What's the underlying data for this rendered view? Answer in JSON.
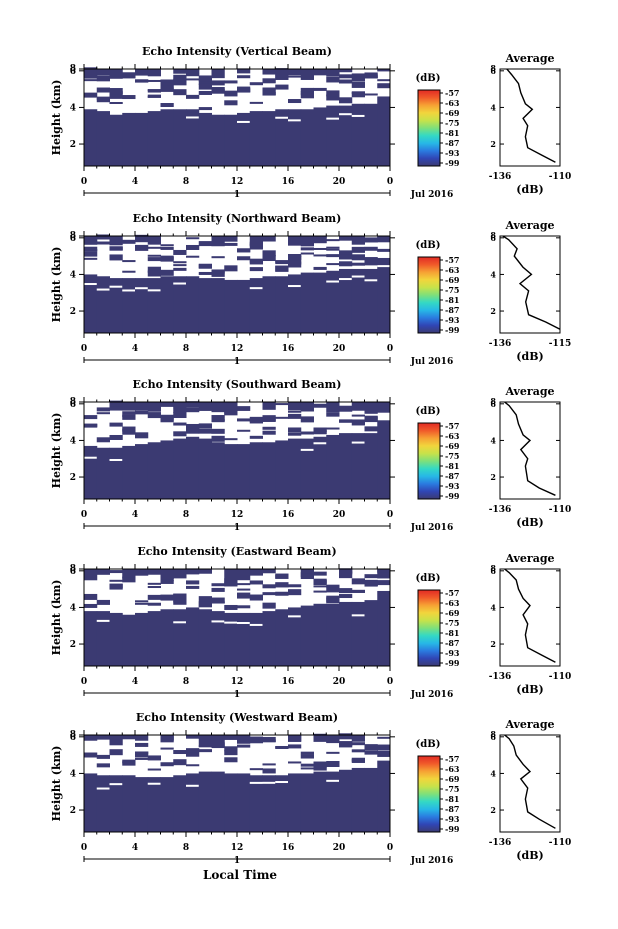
{
  "figure": {
    "xaxis_bottom_label": "Local Time",
    "colorbar_unit": "(dB)",
    "avg_xlabel": "(dB)",
    "fill_color": "#3b3a72",
    "colorbar_colors": [
      "#3b3a72",
      "#3046b5",
      "#2a7be0",
      "#27b8e6",
      "#34d9c4",
      "#7fe07a",
      "#c8e24a",
      "#f2d53c",
      "#f6a134",
      "#f05a2a",
      "#e22b24"
    ]
  },
  "chart_data": [
    {
      "type": "heatmap",
      "title": "Echo Intensity (Vertical Beam)",
      "ylabel": "Height (km)",
      "xlim": [
        0,
        24
      ],
      "ylim": [
        0.8,
        6.1
      ],
      "xticks": [
        "0",
        "4",
        "8",
        "12",
        "16",
        "20",
        "0"
      ],
      "yticks": [
        "2",
        "4",
        "6",
        "8"
      ],
      "xsub_label": "1",
      "date_label": "Jul 2016",
      "colorbar_ticks": [
        "-57",
        "-63",
        "-69",
        "-75",
        "-81",
        "-87",
        "-93",
        "-99"
      ],
      "echo_top_km": [
        3.9,
        3.8,
        3.6,
        3.7,
        3.7,
        3.8,
        3.9,
        3.9,
        3.9,
        3.7,
        3.6,
        3.6,
        3.7,
        3.8,
        3.8,
        3.9,
        3.9,
        3.9,
        4.0,
        4.1,
        4.1,
        4.2,
        4.2,
        4.6
      ],
      "avg": {
        "title": "Average",
        "xlim": [
          -136,
          -110
        ],
        "ylim": [
          0.8,
          6.1
        ],
        "xticks": [
          "-136",
          "-110"
        ],
        "yticks": [
          "2",
          "4",
          "6",
          "8"
        ],
        "profile": [
          [
            -112,
            1.0
          ],
          [
            -118,
            1.4
          ],
          [
            -124,
            1.8
          ],
          [
            -125,
            2.4
          ],
          [
            -124,
            3.0
          ],
          [
            -126,
            3.4
          ],
          [
            -122,
            3.9
          ],
          [
            -125,
            4.2
          ],
          [
            -127,
            4.8
          ],
          [
            -128,
            5.3
          ],
          [
            -131,
            5.8
          ],
          [
            -133,
            6.1
          ]
        ]
      }
    },
    {
      "type": "heatmap",
      "title": "Echo Intensity (Northward Beam)",
      "ylabel": "Height (km)",
      "xlim": [
        0,
        24
      ],
      "ylim": [
        0.8,
        6.1
      ],
      "xticks": [
        "0",
        "4",
        "8",
        "12",
        "16",
        "20",
        "0"
      ],
      "yticks": [
        "2",
        "4",
        "6",
        "8"
      ],
      "xsub_label": "1",
      "date_label": "Jul 2016",
      "colorbar_ticks": [
        "-57",
        "-63",
        "-69",
        "-75",
        "-81",
        "-87",
        "-93",
        "-99"
      ],
      "echo_top_km": [
        4.0,
        3.9,
        3.8,
        3.8,
        3.8,
        3.8,
        3.9,
        3.9,
        3.9,
        3.8,
        3.8,
        3.7,
        3.7,
        3.8,
        3.9,
        3.9,
        4.0,
        4.1,
        4.1,
        4.2,
        4.3,
        4.3,
        4.3,
        4.9
      ],
      "avg": {
        "title": "Average",
        "xlim": [
          -136,
          -115
        ],
        "ylim": [
          0.8,
          6.1
        ],
        "xticks": [
          "-136",
          "-115"
        ],
        "yticks": [
          "2",
          "4",
          "6",
          "8"
        ],
        "profile": [
          [
            -115,
            1.0
          ],
          [
            -120,
            1.4
          ],
          [
            -126,
            1.8
          ],
          [
            -127,
            2.5
          ],
          [
            -126,
            3.1
          ],
          [
            -129,
            3.5
          ],
          [
            -125,
            4.0
          ],
          [
            -128,
            4.4
          ],
          [
            -131,
            5.0
          ],
          [
            -130,
            5.4
          ],
          [
            -133,
            5.9
          ],
          [
            -135,
            6.1
          ]
        ]
      }
    },
    {
      "type": "heatmap",
      "title": "Echo Intensity (Southward Beam)",
      "ylabel": "Height (km)",
      "xlim": [
        0,
        24
      ],
      "ylim": [
        0.8,
        6.1
      ],
      "xticks": [
        "0",
        "4",
        "8",
        "12",
        "16",
        "20",
        "0"
      ],
      "yticks": [
        "2",
        "4",
        "6",
        "8"
      ],
      "xsub_label": "1",
      "date_label": "Jul 2016",
      "colorbar_ticks": [
        "-57",
        "-63",
        "-69",
        "-75",
        "-81",
        "-87",
        "-93",
        "-99"
      ],
      "echo_top_km": [
        3.7,
        3.6,
        3.6,
        3.7,
        3.8,
        3.9,
        4.0,
        4.1,
        4.2,
        4.1,
        3.9,
        3.8,
        3.8,
        3.9,
        3.9,
        4.0,
        4.1,
        4.1,
        4.2,
        4.3,
        4.4,
        4.4,
        4.4,
        5.1
      ],
      "avg": {
        "title": "Average",
        "xlim": [
          -136,
          -110
        ],
        "ylim": [
          0.8,
          6.1
        ],
        "xticks": [
          "-136",
          "-110"
        ],
        "yticks": [
          "2",
          "4",
          "6",
          "8"
        ],
        "profile": [
          [
            -112,
            1.0
          ],
          [
            -119,
            1.4
          ],
          [
            -124,
            1.8
          ],
          [
            -125,
            2.6
          ],
          [
            -124,
            3.0
          ],
          [
            -127,
            3.5
          ],
          [
            -123,
            4.0
          ],
          [
            -126,
            4.3
          ],
          [
            -128,
            4.9
          ],
          [
            -129,
            5.4
          ],
          [
            -132,
            5.9
          ],
          [
            -134,
            6.1
          ]
        ]
      }
    },
    {
      "type": "heatmap",
      "title": "Echo Intensity (Eastward Beam)",
      "ylabel": "Height (km)",
      "xlim": [
        0,
        24
      ],
      "ylim": [
        0.8,
        6.1
      ],
      "xticks": [
        "0",
        "4",
        "8",
        "12",
        "16",
        "20",
        "0"
      ],
      "yticks": [
        "2",
        "4",
        "6",
        "8"
      ],
      "xsub_label": "1",
      "date_label": "Jul 2016",
      "colorbar_ticks": [
        "-57",
        "-63",
        "-69",
        "-75",
        "-81",
        "-87",
        "-93",
        "-99"
      ],
      "echo_top_km": [
        3.8,
        3.8,
        3.7,
        3.6,
        3.7,
        3.8,
        3.9,
        3.9,
        4.0,
        3.9,
        3.8,
        3.7,
        3.7,
        3.7,
        3.8,
        3.9,
        4.0,
        4.1,
        4.2,
        4.2,
        4.3,
        4.3,
        4.4,
        4.9
      ],
      "avg": {
        "title": "Average",
        "xlim": [
          -136,
          -110
        ],
        "ylim": [
          0.8,
          6.1
        ],
        "xticks": [
          "-136",
          "-110"
        ],
        "yticks": [
          "2",
          "4",
          "6",
          "8"
        ],
        "profile": [
          [
            -112,
            1.0
          ],
          [
            -118,
            1.4
          ],
          [
            -124,
            1.8
          ],
          [
            -125,
            2.5
          ],
          [
            -124,
            3.1
          ],
          [
            -126,
            3.6
          ],
          [
            -123,
            4.1
          ],
          [
            -126,
            4.5
          ],
          [
            -128,
            5.0
          ],
          [
            -129,
            5.5
          ],
          [
            -132,
            5.9
          ],
          [
            -134,
            6.1
          ]
        ]
      }
    },
    {
      "type": "heatmap",
      "title": "Echo Intensity (Westward Beam)",
      "ylabel": "Height (km)",
      "xlim": [
        0,
        24
      ],
      "ylim": [
        0.8,
        6.1
      ],
      "xticks": [
        "0",
        "4",
        "8",
        "12",
        "16",
        "20",
        "0"
      ],
      "yticks": [
        "2",
        "4",
        "6",
        "8"
      ],
      "xsub_label": "1",
      "date_label": "Jul 2016",
      "colorbar_ticks": [
        "-57",
        "-63",
        "-69",
        "-75",
        "-81",
        "-87",
        "-93",
        "-99"
      ],
      "echo_top_km": [
        4.0,
        3.9,
        3.9,
        3.9,
        3.8,
        3.8,
        3.8,
        3.9,
        4.0,
        4.1,
        4.1,
        4.0,
        4.0,
        3.9,
        3.9,
        3.9,
        4.0,
        4.0,
        4.1,
        4.1,
        4.2,
        4.3,
        4.3,
        4.7
      ],
      "avg": {
        "title": "Average",
        "xlim": [
          -136,
          -110
        ],
        "ylim": [
          0.8,
          6.1
        ],
        "xticks": [
          "-136",
          "-110"
        ],
        "yticks": [
          "2",
          "4",
          "6",
          "8"
        ],
        "profile": [
          [
            -112,
            1.0
          ],
          [
            -119,
            1.5
          ],
          [
            -124,
            1.9
          ],
          [
            -125,
            2.6
          ],
          [
            -124,
            3.2
          ],
          [
            -127,
            3.7
          ],
          [
            -123,
            4.1
          ],
          [
            -126,
            4.5
          ],
          [
            -129,
            5.0
          ],
          [
            -130,
            5.5
          ],
          [
            -132,
            5.9
          ],
          [
            -134,
            6.1
          ]
        ]
      }
    }
  ]
}
